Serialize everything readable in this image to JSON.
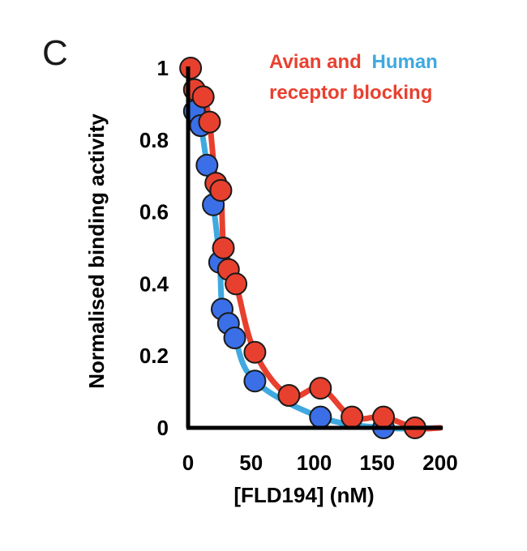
{
  "panel_label": "C",
  "colors": {
    "avian": "#e8402f",
    "human": "#3fa9e0",
    "human_marker": "#3b6fe8",
    "axis": "#000000"
  },
  "legend": {
    "part1": "Avian and",
    "part2": "Human",
    "line2": "receptor blocking"
  },
  "chart_data": {
    "type": "scatter",
    "title": "",
    "xlabel": "[FLD194] (nM)",
    "ylabel": "Normalised binding activity",
    "xlim": [
      0,
      200
    ],
    "ylim": [
      0,
      1
    ],
    "xticks": [
      "0",
      "50",
      "100",
      "150",
      "200"
    ],
    "yticks": [
      "0",
      "0.2",
      "0.4",
      "0.6",
      "0.8",
      "1"
    ],
    "grid": false,
    "legend_position": "top-right",
    "series": [
      {
        "name": "Human",
        "color": "#3b6fe8",
        "line_color": "#3fa9e0",
        "points": [
          {
            "x": 5,
            "y": 0.88
          },
          {
            "x": 10,
            "y": 0.84
          },
          {
            "x": 15,
            "y": 0.73
          },
          {
            "x": 20,
            "y": 0.62
          },
          {
            "x": 25,
            "y": 0.46
          },
          {
            "x": 27,
            "y": 0.33
          },
          {
            "x": 32,
            "y": 0.29
          },
          {
            "x": 37,
            "y": 0.25
          },
          {
            "x": 53,
            "y": 0.13
          },
          {
            "x": 105,
            "y": 0.03
          },
          {
            "x": 155,
            "y": 0.0
          }
        ]
      },
      {
        "name": "Avian",
        "color": "#e8402f",
        "line_color": "#e8402f",
        "points": [
          {
            "x": 2,
            "y": 1.0
          },
          {
            "x": 5,
            "y": 0.94
          },
          {
            "x": 12,
            "y": 0.92
          },
          {
            "x": 17,
            "y": 0.85
          },
          {
            "x": 22,
            "y": 0.68
          },
          {
            "x": 26,
            "y": 0.66
          },
          {
            "x": 28,
            "y": 0.5
          },
          {
            "x": 32,
            "y": 0.44
          },
          {
            "x": 38,
            "y": 0.4
          },
          {
            "x": 53,
            "y": 0.21
          },
          {
            "x": 80,
            "y": 0.09
          },
          {
            "x": 105,
            "y": 0.11
          },
          {
            "x": 130,
            "y": 0.03
          },
          {
            "x": 155,
            "y": 0.03
          },
          {
            "x": 180,
            "y": 0.0
          }
        ]
      }
    ]
  }
}
